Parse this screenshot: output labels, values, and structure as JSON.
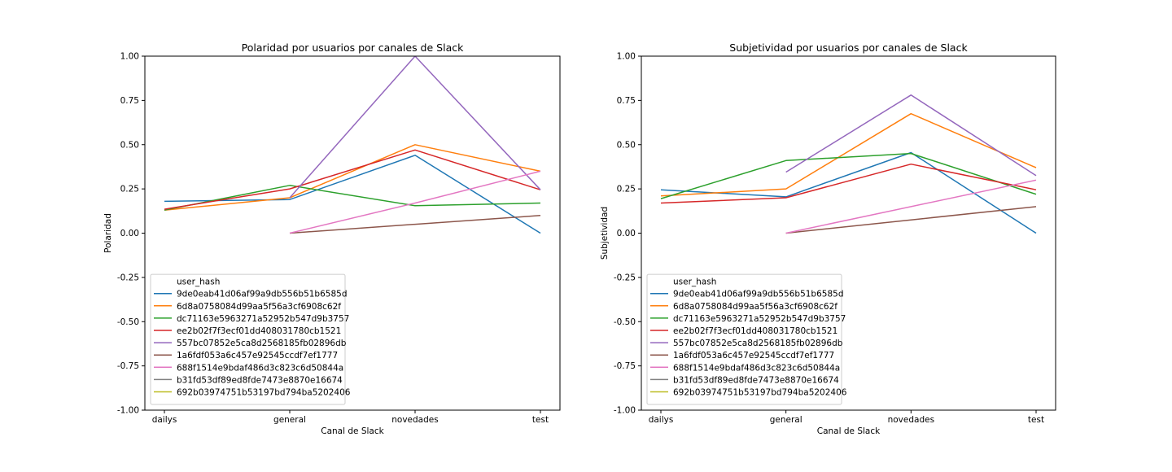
{
  "chart_data": [
    {
      "type": "line",
      "title": "Polaridad por usuarios por canales de Slack",
      "xlabel": "Canal de Slack",
      "ylabel": "Polaridad",
      "categories": [
        "dailys",
        "general",
        "novedades",
        "test"
      ],
      "ylim": [
        -1.0,
        1.0
      ],
      "yticks": [
        "-1.00",
        "-0.75",
        "-0.50",
        "-0.25",
        "0.00",
        "0.25",
        "0.50",
        "0.75",
        "1.00"
      ],
      "grid": false,
      "legend_title": "user_hash",
      "legend_position": "lower-left",
      "series": [
        {
          "name": "9de0eab41d06af99a9db556b51b6585d",
          "color": "#1f77b4",
          "values": [
            0.18,
            0.19,
            0.44,
            0.0
          ]
        },
        {
          "name": "6d8a0758084d99aa5f56a3cf6908c62f",
          "color": "#ff7f0e",
          "values": [
            0.13,
            0.2,
            0.5,
            0.35
          ]
        },
        {
          "name": "dc71163e5963271a52952b547d9b3757",
          "color": "#2ca02c",
          "values": [
            0.13,
            0.27,
            0.155,
            0.17
          ]
        },
        {
          "name": "ee2b02f7f3ecf01dd408031780cb1521",
          "color": "#d62728",
          "values": [
            0.135,
            0.25,
            0.47,
            0.245
          ]
        },
        {
          "name": "557bc07852e5ca8d2568185fb02896db",
          "color": "#9467bd",
          "values": [
            null,
            0.2,
            1.0,
            0.245
          ]
        },
        {
          "name": "1a6fdf053a6c457e92545ccdf7ef1777",
          "color": "#8c564b",
          "values": [
            null,
            0.0,
            0.05,
            0.1
          ]
        },
        {
          "name": "688f1514e9bdaf486d3c823c6d50844a",
          "color": "#e377c2",
          "values": [
            null,
            0.0,
            0.17,
            0.35
          ]
        },
        {
          "name": "b31fd53df89ed8fde7473e8870e16674",
          "color": "#7f7f7f",
          "values": [
            null,
            null,
            null,
            null
          ]
        },
        {
          "name": "692b03974751b53197bd794ba5202406",
          "color": "#bcbd22",
          "values": [
            null,
            null,
            null,
            null
          ]
        }
      ]
    },
    {
      "type": "line",
      "title": "Subjetividad por usuarios por canales de Slack",
      "xlabel": "Canal de Slack",
      "ylabel": "Subjetividad",
      "categories": [
        "dailys",
        "general",
        "novedades",
        "test"
      ],
      "ylim": [
        -1.0,
        1.0
      ],
      "yticks": [
        "-1.00",
        "-0.75",
        "-0.50",
        "-0.25",
        "0.00",
        "0.25",
        "0.50",
        "0.75",
        "1.00"
      ],
      "grid": false,
      "legend_title": "user_hash",
      "legend_position": "lower-left",
      "series": [
        {
          "name": "9de0eab41d06af99a9db556b51b6585d",
          "color": "#1f77b4",
          "values": [
            0.245,
            0.205,
            0.455,
            0.0
          ]
        },
        {
          "name": "6d8a0758084d99aa5f56a3cf6908c62f",
          "color": "#ff7f0e",
          "values": [
            0.21,
            0.25,
            0.675,
            0.37
          ]
        },
        {
          "name": "dc71163e5963271a52952b547d9b3757",
          "color": "#2ca02c",
          "values": [
            0.195,
            0.41,
            0.45,
            0.22
          ]
        },
        {
          "name": "ee2b02f7f3ecf01dd408031780cb1521",
          "color": "#d62728",
          "values": [
            0.17,
            0.2,
            0.39,
            0.245
          ]
        },
        {
          "name": "557bc07852e5ca8d2568185fb02896db",
          "color": "#9467bd",
          "values": [
            null,
            0.345,
            0.78,
            0.325
          ]
        },
        {
          "name": "1a6fdf053a6c457e92545ccdf7ef1777",
          "color": "#8c564b",
          "values": [
            null,
            0.0,
            0.075,
            0.15
          ]
        },
        {
          "name": "688f1514e9bdaf486d3c823c6d50844a",
          "color": "#e377c2",
          "values": [
            null,
            0.0,
            0.15,
            0.3
          ]
        },
        {
          "name": "b31fd53df89ed8fde7473e8870e16674",
          "color": "#7f7f7f",
          "values": [
            null,
            null,
            null,
            null
          ]
        },
        {
          "name": "692b03974751b53197bd794ba5202406",
          "color": "#bcbd22",
          "values": [
            null,
            null,
            null,
            null
          ]
        }
      ]
    }
  ]
}
